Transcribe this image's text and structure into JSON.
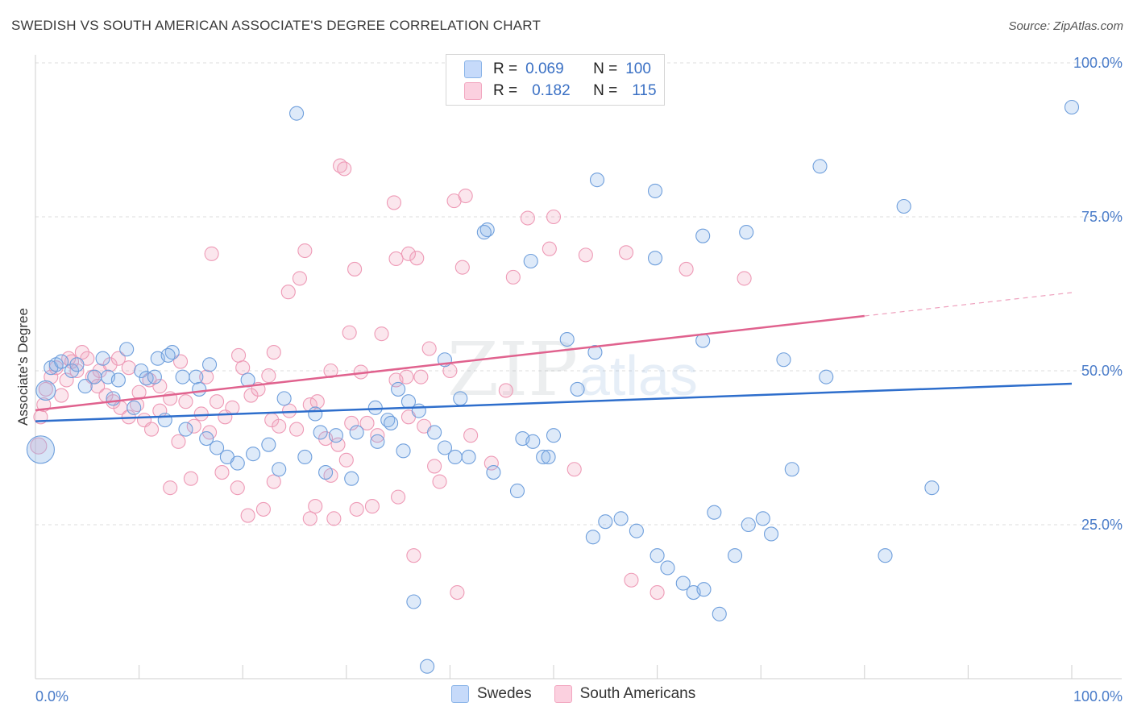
{
  "header": {
    "title": "SWEDISH VS SOUTH AMERICAN ASSOCIATE'S DEGREE CORRELATION CHART",
    "source": "Source: ZipAtlas.com"
  },
  "legend": {
    "series": [
      {
        "r_label": "R =",
        "r_value": "0.069",
        "n_label": "N =",
        "n_value": "100"
      },
      {
        "r_label": "R =",
        "r_value": "0.182",
        "n_label": "N =",
        "n_value": "115"
      }
    ]
  },
  "bottom_legend": {
    "swedes": "Swedes",
    "south_americans": "South Americans"
  },
  "watermark": {
    "zip": "ZIP",
    "atlas": "atlas"
  },
  "chart_data": {
    "type": "scatter",
    "title": "SWEDISH VS SOUTH AMERICAN ASSOCIATE'S DEGREE CORRELATION CHART",
    "xlabel": "",
    "ylabel": "Associate's Degree",
    "xlim": [
      0,
      100
    ],
    "ylim": [
      0,
      100
    ],
    "x_tick_labels": [
      "0.0%",
      "100.0%"
    ],
    "y_ticks": [
      25,
      50,
      75,
      100
    ],
    "y_tick_labels": [
      "25.0%",
      "50.0%",
      "75.0%",
      "100.0%"
    ],
    "grid": true,
    "legend_placement": "top-center",
    "colors": {
      "swedes": "#8ab4e8",
      "swedes_line": "#2e6ecc",
      "south_americans": "#f2a7c0",
      "south_americans_line": "#e0628e"
    },
    "series": [
      {
        "name": "Swedes",
        "r": 0.069,
        "n": 100,
        "trend": {
          "x0": 0,
          "y0": 41.8,
          "x1": 100,
          "y1": 47.9
        },
        "points": [
          [
            25.2,
            91.8
          ],
          [
            100,
            92.8
          ],
          [
            43.6,
            72.9
          ],
          [
            43.3,
            72.5
          ],
          [
            54.2,
            81.0
          ],
          [
            59.8,
            79.2
          ],
          [
            75.7,
            83.2
          ],
          [
            64.4,
            71.9
          ],
          [
            68.6,
            72.5
          ],
          [
            83.8,
            76.7
          ],
          [
            51.3,
            55.1
          ],
          [
            39.5,
            51.8
          ],
          [
            52.3,
            47.0
          ],
          [
            64.4,
            54.9
          ],
          [
            72.2,
            51.8
          ],
          [
            76.3,
            49.0
          ],
          [
            59.8,
            68.3
          ],
          [
            47.8,
            67.8
          ],
          [
            54.0,
            53.0
          ],
          [
            35.0,
            47.0
          ],
          [
            1.5,
            50.5
          ],
          [
            2.0,
            51.0
          ],
          [
            2.5,
            51.5
          ],
          [
            3.5,
            50.0
          ],
          [
            4.0,
            51.0
          ],
          [
            6.5,
            52.0
          ],
          [
            7.0,
            49.0
          ],
          [
            8.0,
            48.5
          ],
          [
            8.8,
            53.5
          ],
          [
            10.2,
            50.0
          ],
          [
            10.7,
            48.8
          ],
          [
            11.5,
            49.0
          ],
          [
            11.8,
            52.0
          ],
          [
            13.2,
            53.0
          ],
          [
            14.2,
            49.0
          ],
          [
            12.8,
            52.5
          ],
          [
            15.5,
            49.0
          ],
          [
            15.8,
            47.0
          ],
          [
            16.8,
            51.0
          ],
          [
            20.5,
            48.5
          ],
          [
            24.0,
            45.5
          ],
          [
            27.0,
            43.0
          ],
          [
            27.5,
            40.0
          ],
          [
            29.0,
            39.5
          ],
          [
            32.8,
            44.0
          ],
          [
            34.0,
            42.0
          ],
          [
            34.3,
            41.5
          ],
          [
            35.5,
            37.0
          ],
          [
            36.0,
            45.0
          ],
          [
            37.0,
            43.5
          ],
          [
            38.5,
            40.0
          ],
          [
            39.5,
            37.5
          ],
          [
            40.5,
            36.0
          ],
          [
            41.0,
            45.5
          ],
          [
            41.8,
            36.0
          ],
          [
            44.2,
            33.5
          ],
          [
            46.5,
            30.5
          ],
          [
            47.0,
            39.0
          ],
          [
            48.0,
            38.5
          ],
          [
            49.0,
            36.0
          ],
          [
            49.5,
            36.0
          ],
          [
            50.0,
            39.5
          ],
          [
            53.8,
            23.0
          ],
          [
            55.0,
            25.5
          ],
          [
            56.5,
            26.0
          ],
          [
            58.0,
            24.0
          ],
          [
            60.0,
            20.0
          ],
          [
            61.0,
            18.0
          ],
          [
            62.5,
            15.5
          ],
          [
            63.5,
            14.0
          ],
          [
            64.5,
            14.5
          ],
          [
            65.5,
            27.0
          ],
          [
            66.0,
            10.5
          ],
          [
            67.5,
            20.0
          ],
          [
            68.8,
            25.0
          ],
          [
            70.2,
            26.0
          ],
          [
            71.0,
            23.5
          ],
          [
            73.0,
            34.0
          ],
          [
            82.0,
            20.0
          ],
          [
            86.5,
            31.0
          ],
          [
            4.8,
            47.5
          ],
          [
            5.7,
            49.0
          ],
          [
            7.5,
            45.5
          ],
          [
            9.5,
            44.0
          ],
          [
            12.5,
            42.0
          ],
          [
            14.5,
            40.5
          ],
          [
            16.5,
            39.0
          ],
          [
            17.5,
            37.5
          ],
          [
            18.5,
            36.0
          ],
          [
            19.5,
            35.0
          ],
          [
            21.0,
            36.5
          ],
          [
            22.5,
            38.0
          ],
          [
            23.5,
            34.0
          ],
          [
            26.0,
            36.0
          ],
          [
            28.0,
            33.5
          ],
          [
            30.5,
            32.5
          ],
          [
            31.0,
            40.0
          ],
          [
            33.0,
            38.5
          ],
          [
            36.5,
            12.5
          ],
          [
            37.8,
            2.0
          ]
        ]
      },
      {
        "name": "South Americans",
        "r": 0.182,
        "n": 115,
        "trend": {
          "x0": 0,
          "y0": 43.6,
          "x1": 80,
          "y1": 58.9
        },
        "trend_dashed": {
          "x0": 80,
          "y0": 58.9,
          "x1": 100,
          "y1": 62.7
        },
        "points": [
          [
            29.4,
            83.3
          ],
          [
            29.8,
            82.8
          ],
          [
            34.6,
            77.3
          ],
          [
            40.4,
            77.6
          ],
          [
            41.5,
            78.4
          ],
          [
            47.5,
            74.8
          ],
          [
            50.0,
            75.0
          ],
          [
            36.8,
            68.3
          ],
          [
            49.6,
            69.8
          ],
          [
            36.0,
            69.0
          ],
          [
            17.0,
            69.0
          ],
          [
            26.0,
            69.5
          ],
          [
            30.8,
            66.5
          ],
          [
            34.8,
            68.2
          ],
          [
            41.2,
            66.8
          ],
          [
            46.1,
            65.2
          ],
          [
            53.1,
            68.8
          ],
          [
            57.0,
            69.2
          ],
          [
            62.8,
            66.5
          ],
          [
            68.4,
            65.0
          ],
          [
            24.4,
            62.8
          ],
          [
            30.3,
            56.2
          ],
          [
            33.4,
            56.0
          ],
          [
            38.0,
            53.6
          ],
          [
            25.5,
            65.0
          ],
          [
            19.6,
            52.5
          ],
          [
            23.0,
            53.0
          ],
          [
            20.0,
            50.5
          ],
          [
            22.5,
            49.2
          ],
          [
            28.5,
            50.0
          ],
          [
            31.4,
            49.8
          ],
          [
            34.8,
            48.5
          ],
          [
            35.8,
            49.0
          ],
          [
            37.2,
            49.0
          ],
          [
            40.0,
            50.0
          ],
          [
            45.4,
            46.8
          ],
          [
            42.0,
            39.5
          ],
          [
            44.0,
            35.0
          ],
          [
            39.0,
            32.0
          ],
          [
            52.0,
            34.0
          ],
          [
            57.5,
            16.0
          ],
          [
            60.0,
            14.0
          ],
          [
            40.7,
            14.0
          ],
          [
            36.5,
            20.0
          ],
          [
            35.0,
            29.5
          ],
          [
            38.5,
            34.5
          ],
          [
            32.5,
            28.0
          ],
          [
            31.0,
            27.5
          ],
          [
            30.0,
            35.5
          ],
          [
            28.5,
            33.0
          ],
          [
            1.5,
            49.0
          ],
          [
            2.0,
            50.5
          ],
          [
            3.0,
            48.5
          ],
          [
            3.5,
            51.5
          ],
          [
            4.0,
            50.0
          ],
          [
            5.0,
            52.0
          ],
          [
            5.5,
            49.0
          ],
          [
            6.0,
            47.5
          ],
          [
            6.8,
            46.0
          ],
          [
            7.5,
            45.0
          ],
          [
            8.2,
            44.0
          ],
          [
            9.0,
            42.5
          ],
          [
            9.8,
            44.5
          ],
          [
            10.5,
            42.0
          ],
          [
            11.2,
            40.5
          ],
          [
            12.0,
            43.5
          ],
          [
            13.0,
            45.5
          ],
          [
            13.8,
            38.5
          ],
          [
            14.5,
            45.0
          ],
          [
            15.3,
            41.0
          ],
          [
            16.0,
            43.0
          ],
          [
            16.8,
            40.0
          ],
          [
            17.5,
            45.0
          ],
          [
            18.3,
            42.5
          ],
          [
            19.0,
            44.0
          ],
          [
            20.8,
            46.0
          ],
          [
            21.5,
            47.0
          ],
          [
            22.8,
            42.0
          ],
          [
            23.5,
            41.0
          ],
          [
            24.5,
            43.5
          ],
          [
            25.2,
            40.5
          ],
          [
            26.5,
            44.5
          ],
          [
            27.2,
            45.0
          ],
          [
            28.0,
            39.0
          ],
          [
            29.2,
            38.0
          ],
          [
            30.5,
            41.5
          ],
          [
            32.0,
            41.5
          ],
          [
            33.0,
            39.5
          ],
          [
            36.0,
            42.5
          ],
          [
            37.5,
            41.0
          ],
          [
            13.0,
            31.0
          ],
          [
            15.0,
            32.5
          ],
          [
            18.0,
            33.5
          ],
          [
            19.5,
            31.0
          ],
          [
            20.5,
            26.5
          ],
          [
            22.0,
            27.5
          ],
          [
            23.0,
            32.0
          ],
          [
            26.5,
            26.0
          ],
          [
            27.0,
            28.0
          ],
          [
            28.8,
            26.0
          ],
          [
            0.5,
            42.5
          ],
          [
            0.8,
            44.5
          ],
          [
            1.0,
            47.0
          ],
          [
            2.5,
            46.0
          ],
          [
            3.2,
            52.0
          ],
          [
            4.5,
            53.0
          ],
          [
            6.2,
            50.0
          ],
          [
            7.2,
            51.0
          ],
          [
            8.0,
            52.0
          ],
          [
            9.0,
            50.5
          ],
          [
            10.0,
            46.5
          ],
          [
            11.0,
            48.5
          ],
          [
            12.0,
            47.5
          ],
          [
            14.0,
            51.5
          ],
          [
            16.5,
            49.0
          ]
        ]
      }
    ]
  }
}
